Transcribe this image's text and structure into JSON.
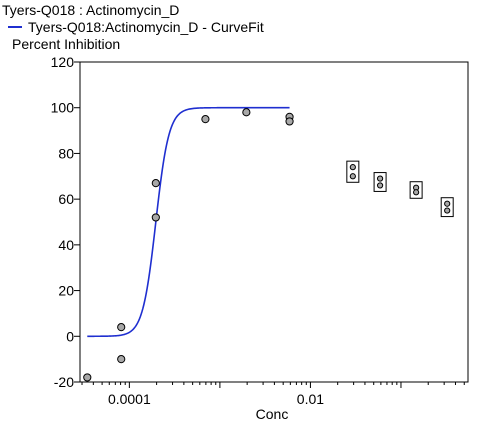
{
  "chart_data": {
    "type": "scatter",
    "title": "Tyers-Q018  :  Actinomycin_D",
    "legend": "Tyers-Q018:Actinomycin_D - CurveFit",
    "ylabel": "Percent  Inhibition",
    "xlabel": "Conc",
    "x_scale": "log",
    "xlim": [
      2.85e-05,
      0.55
    ],
    "ylim": [
      -20,
      120
    ],
    "yticks": [
      -20,
      0,
      20,
      40,
      60,
      80,
      100,
      120
    ],
    "xticks": [
      {
        "value": 0.0001,
        "label": "0.0001"
      },
      {
        "value": 0.01,
        "label": "0.01"
      }
    ],
    "grid": false,
    "series": [
      {
        "name": "Tyers-Q018:Actinomycin_D - CurveFit",
        "type": "line",
        "color": "#1f2fd0",
        "fit": {
          "bottom": 0,
          "top": 100,
          "ec50": 0.000196,
          "hill": 6.0
        },
        "x_range": [
          3.43e-05,
          0.00588
        ]
      },
      {
        "type": "scatter",
        "color": "#a8a8a8",
        "x": [
          3.43e-05,
          8.13e-05,
          8.13e-05,
          0.000196,
          0.000196,
          0.000692,
          0.00196,
          0.00588,
          0.00588
        ],
        "y": [
          -18,
          4,
          -10,
          67,
          52,
          95,
          98,
          96,
          94
        ]
      },
      {
        "type": "scatter_excluded",
        "color": "#a8a8a8",
        "groups": [
          {
            "x": 0.0294,
            "y": [
              74,
              70
            ]
          },
          {
            "x": 0.0588,
            "y": [
              69,
              66
            ]
          },
          {
            "x": 0.147,
            "y": [
              65,
              63
            ]
          },
          {
            "x": 0.324,
            "y": [
              58,
              55
            ]
          }
        ]
      }
    ]
  }
}
